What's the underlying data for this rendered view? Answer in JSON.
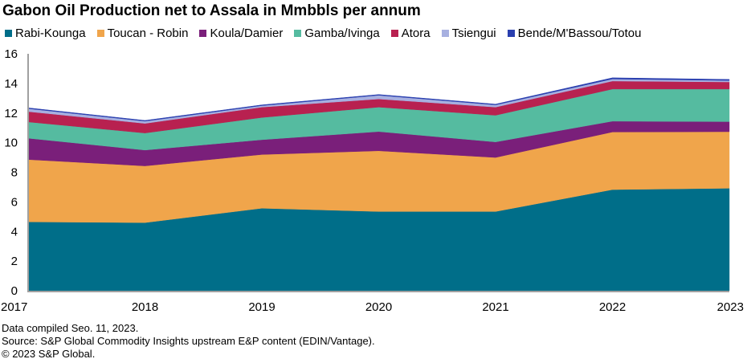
{
  "chart_data": {
    "type": "area",
    "stacked": true,
    "title": "Gabon Oil Production net to Assala in Mmbbls per annum",
    "xlabel": "",
    "ylabel": "",
    "x": [
      "2017",
      "2018",
      "2019",
      "2020",
      "2021",
      "2022",
      "2023"
    ],
    "ylim": [
      0,
      16
    ],
    "yticks": [
      0,
      2,
      4,
      6,
      8,
      10,
      12,
      14,
      16
    ],
    "grid": false,
    "legend_position": "top",
    "series": [
      {
        "name": "Rabi-Kounga",
        "color": "#006e89",
        "values": [
          4.65,
          4.6,
          5.57,
          5.35,
          5.35,
          6.83,
          6.92
        ]
      },
      {
        "name": "Toucan - Robin",
        "color": "#f0a54b",
        "values": [
          4.21,
          3.83,
          3.63,
          4.1,
          3.65,
          3.89,
          3.82
        ]
      },
      {
        "name": "Koula/Damier",
        "color": "#7a1f7a",
        "values": [
          1.44,
          1.07,
          1.0,
          1.3,
          1.05,
          0.73,
          0.68
        ]
      },
      {
        "name": "Gamba/Ivinga",
        "color": "#55bba0",
        "values": [
          1.1,
          1.15,
          1.5,
          1.65,
          1.8,
          2.17,
          2.2
        ]
      },
      {
        "name": "Atora",
        "color": "#b82150",
        "values": [
          0.7,
          0.65,
          0.7,
          0.55,
          0.55,
          0.54,
          0.48
        ]
      },
      {
        "name": "Tsiengui",
        "color": "#a7b0e0",
        "values": [
          0.2,
          0.15,
          0.1,
          0.25,
          0.15,
          0.14,
          0.1
        ]
      },
      {
        "name": "Bende/M'Bassou/Totou",
        "color": "#2a3faf",
        "values": [
          0.05,
          0.05,
          0.05,
          0.05,
          0.05,
          0.08,
          0.07
        ]
      }
    ]
  },
  "footer": {
    "line1": "Data compiled Seo. 11, 2023.",
    "line2": "Source: S&P Global Commodity Insights upstream E&P content (EDIN/Vantage).",
    "line3": "© 2023 S&P Global."
  }
}
